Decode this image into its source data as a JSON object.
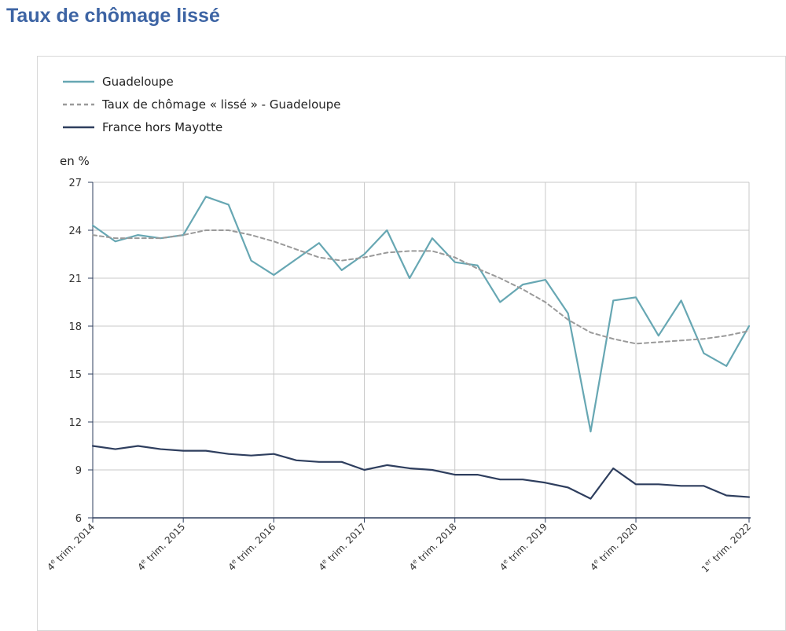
{
  "page": {
    "title": "Taux de chômage lissé"
  },
  "colors": {
    "title": "#3d64a4",
    "guadeloupe": "#67a7b3",
    "smoothed": "#9a9a9a",
    "france": "#2e3e5e",
    "grid": "#c9c9c9",
    "axis": "#2e3e5e"
  },
  "chart_data": {
    "type": "line",
    "title": "",
    "ylabel": "en %",
    "xlabel": "",
    "ylim": [
      6,
      27
    ],
    "yticks": [
      6,
      9,
      12,
      15,
      18,
      21,
      24,
      27
    ],
    "grid": true,
    "legend_position": "top-left",
    "x": [
      "4e trim. 2014",
      "1er trim. 2015",
      "2e trim. 2015",
      "3e trim. 2015",
      "4e trim. 2015",
      "1er trim. 2016",
      "2e trim. 2016",
      "3e trim. 2016",
      "4e trim. 2016",
      "1er trim. 2017",
      "2e trim. 2017",
      "3e trim. 2017",
      "4e trim. 2017",
      "1er trim. 2018",
      "2e trim. 2018",
      "3e trim. 2018",
      "4e trim. 2018",
      "1er trim. 2019",
      "2e trim. 2019",
      "3e trim. 2019",
      "4e trim. 2019",
      "1er trim. 2020",
      "2e trim. 2020",
      "3e trim. 2020",
      "4e trim. 2020",
      "1er trim. 2021",
      "2e trim. 2021",
      "3e trim. 2021",
      "4e trim. 2021",
      "1er trim. 2022"
    ],
    "xtick_labels": [
      {
        "index": 0,
        "sup": "e",
        "rest": " trim. 2014"
      },
      {
        "index": 4,
        "sup": "e",
        "rest": " trim. 2015"
      },
      {
        "index": 8,
        "sup": "e",
        "rest": " trim. 2016"
      },
      {
        "index": 12,
        "sup": "e",
        "rest": " trim. 2017"
      },
      {
        "index": 16,
        "sup": "e",
        "rest": " trim. 2018"
      },
      {
        "index": 20,
        "sup": "e",
        "rest": " trim. 2019"
      },
      {
        "index": 24,
        "sup": "e",
        "rest": " trim. 2020"
      },
      {
        "index": 29,
        "sup": "er",
        "rest": " trim. 2022"
      }
    ],
    "series": [
      {
        "key": "guadeloupe",
        "name": "Guadeloupe",
        "style": "solid",
        "values": [
          24.3,
          23.3,
          23.7,
          23.5,
          23.7,
          26.1,
          25.6,
          22.1,
          21.2,
          22.2,
          23.2,
          21.5,
          22.5,
          24.0,
          21.0,
          23.5,
          22.0,
          21.8,
          19.5,
          20.6,
          20.9,
          18.8,
          11.4,
          19.6,
          19.8,
          17.4,
          19.6,
          16.3,
          15.5,
          18.0
        ]
      },
      {
        "key": "smoothed",
        "name": "Taux de chômage « lissé » - Guadeloupe",
        "style": "dashed",
        "values": [
          23.7,
          23.5,
          23.5,
          23.5,
          23.7,
          24.0,
          24.0,
          23.7,
          23.3,
          22.8,
          22.3,
          22.1,
          22.3,
          22.6,
          22.7,
          22.7,
          22.3,
          21.6,
          21.0,
          20.3,
          19.5,
          18.4,
          17.6,
          17.2,
          16.9,
          17.0,
          17.1,
          17.2,
          17.4,
          17.7
        ]
      },
      {
        "key": "france",
        "name": "France hors Mayotte",
        "style": "solid",
        "values": [
          10.5,
          10.3,
          10.5,
          10.3,
          10.2,
          10.2,
          10.0,
          9.9,
          10.0,
          9.6,
          9.5,
          9.5,
          9.0,
          9.3,
          9.1,
          9.0,
          8.7,
          8.7,
          8.4,
          8.4,
          8.2,
          7.9,
          7.2,
          9.1,
          8.1,
          8.1,
          8.0,
          8.0,
          7.4,
          7.3
        ]
      }
    ]
  }
}
